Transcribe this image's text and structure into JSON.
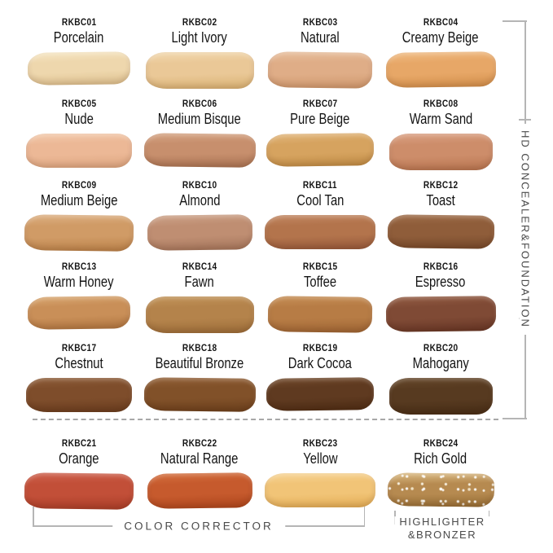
{
  "groups": {
    "concealer_foundation": "HD CONCEALER&FOUNDATION",
    "color_corrector": "COLOR CORRECTOR",
    "highlighter_bronzer_line1": "HIGHLIGHTER",
    "highlighter_bronzer_line2": "&BRONZER"
  },
  "colors": {
    "background": "#ffffff",
    "bracket_line": "#b5b5b5",
    "divider": "#a8a8a8",
    "label_text": "#4a4a4a",
    "shade_text": "#141414"
  },
  "shades": [
    {
      "code": "RKBC01",
      "name": "Porcelain",
      "color": "#eed7ad",
      "light": "#f6e6c4",
      "dark": "#ddc08e"
    },
    {
      "code": "RKBC02",
      "name": "Light Ivory",
      "color": "#eac897",
      "light": "#f2d9b0",
      "dark": "#d9b273"
    },
    {
      "code": "RKBC03",
      "name": "Natural",
      "color": "#dfad87",
      "light": "#e8c09e",
      "dark": "#cf986d"
    },
    {
      "code": "RKBC04",
      "name": "Creamy Beige",
      "color": "#e7a767",
      "light": "#f0bc84",
      "dark": "#d28f4b"
    },
    {
      "code": "RKBC05",
      "name": "Nude",
      "color": "#ecb896",
      "light": "#f3cbad",
      "dark": "#dda680"
    },
    {
      "code": "RKBC06",
      "name": "Medium Bisque",
      "color": "#c78f6d",
      "light": "#d6a686",
      "dark": "#a87252"
    },
    {
      "code": "RKBC07",
      "name": "Pure Beige",
      "color": "#d6a35f",
      "light": "#e2b77d",
      "dark": "#c08c45"
    },
    {
      "code": "RKBC08",
      "name": "Warm Sand",
      "color": "#cd8d6a",
      "light": "#dba285",
      "dark": "#b87550"
    },
    {
      "code": "RKBC09",
      "name": "Medium Beige",
      "color": "#d09b66",
      "light": "#deb285",
      "dark": "#ba8148"
    },
    {
      "code": "RKBC10",
      "name": "Almond",
      "color": "#bf8e72",
      "light": "#cda389",
      "dark": "#a4755b"
    },
    {
      "code": "RKBC11",
      "name": "Cool Tan",
      "color": "#b3744c",
      "light": "#c38964",
      "dark": "#95583a"
    },
    {
      "code": "RKBC12",
      "name": "Toast",
      "color": "#8f5d3a",
      "light": "#a06f4b",
      "dark": "#74482a"
    },
    {
      "code": "RKBC13",
      "name": "Warm Honey",
      "color": "#c98f58",
      "light": "#d9a872",
      "dark": "#b07640"
    },
    {
      "code": "RKBC14",
      "name": "Fawn",
      "color": "#b4834b",
      "light": "#c29459",
      "dark": "#9b6c38"
    },
    {
      "code": "RKBC15",
      "name": "Toffee",
      "color": "#b77c45",
      "light": "#c79057",
      "dark": "#9d6433"
    },
    {
      "code": "RKBC16",
      "name": "Espresso",
      "color": "#7f4a35",
      "light": "#935c43",
      "dark": "#653525"
    },
    {
      "code": "RKBC17",
      "name": "Chestnut",
      "color": "#7e4d2b",
      "light": "#8f5e3a",
      "dark": "#683c1e"
    },
    {
      "code": "RKBC18",
      "name": "Beautiful Bronze",
      "color": "#815129",
      "light": "#946239",
      "dark": "#6a3f1c"
    },
    {
      "code": "RKBC19",
      "name": "Dark Cocoa",
      "color": "#5f3a20",
      "light": "#724a2c",
      "dark": "#4c2c14"
    },
    {
      "code": "RKBC20",
      "name": "Mahogany",
      "color": "#573a20",
      "light": "#67492c",
      "dark": "#452c15"
    },
    {
      "code": "RKBC21",
      "name": "Orange",
      "color": "#c24f38",
      "light": "#cf6350",
      "dark": "#a93d28"
    },
    {
      "code": "RKBC22",
      "name": "Natural Range",
      "color": "#c65a2d",
      "light": "#d4703f",
      "dark": "#ad451c"
    },
    {
      "code": "RKBC23",
      "name": "Yellow",
      "color": "#f1c477",
      "light": "#f7d597",
      "dark": "#e3ad55"
    },
    {
      "code": "RKBC24",
      "name": "Rich Gold",
      "color": "#b68a50",
      "light": "#dcbd86",
      "dark": "#946c34",
      "sparkle": true
    }
  ]
}
